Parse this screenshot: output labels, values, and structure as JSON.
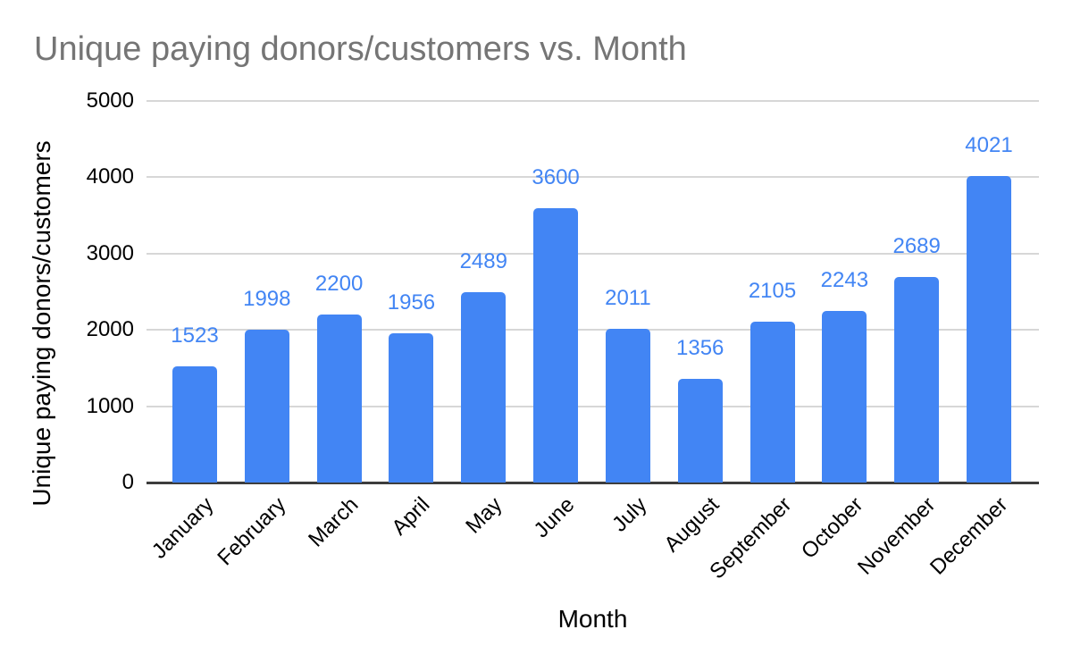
{
  "chart_data": {
    "type": "bar",
    "title": "Unique paying donors/customers vs. Month",
    "xlabel": "Month",
    "ylabel": "Unique paying donors/customers",
    "categories": [
      "January",
      "February",
      "March",
      "April",
      "May",
      "June",
      "July",
      "August",
      "September",
      "October",
      "November",
      "December"
    ],
    "values": [
      1523,
      1998,
      2200,
      1956,
      2489,
      3600,
      2011,
      1356,
      2105,
      2243,
      2689,
      4021
    ],
    "ylim": [
      0,
      5000
    ],
    "yticks": [
      0,
      1000,
      2000,
      3000,
      4000,
      5000
    ],
    "grid": true,
    "legend": "none",
    "data_labels": true,
    "colors": {
      "bar": "#4285f4",
      "data_label": "#4285f4",
      "title": "#757575",
      "axis_text": "#000000",
      "gridline": "#d7d7d7",
      "baseline": "#3d3d3d"
    }
  }
}
